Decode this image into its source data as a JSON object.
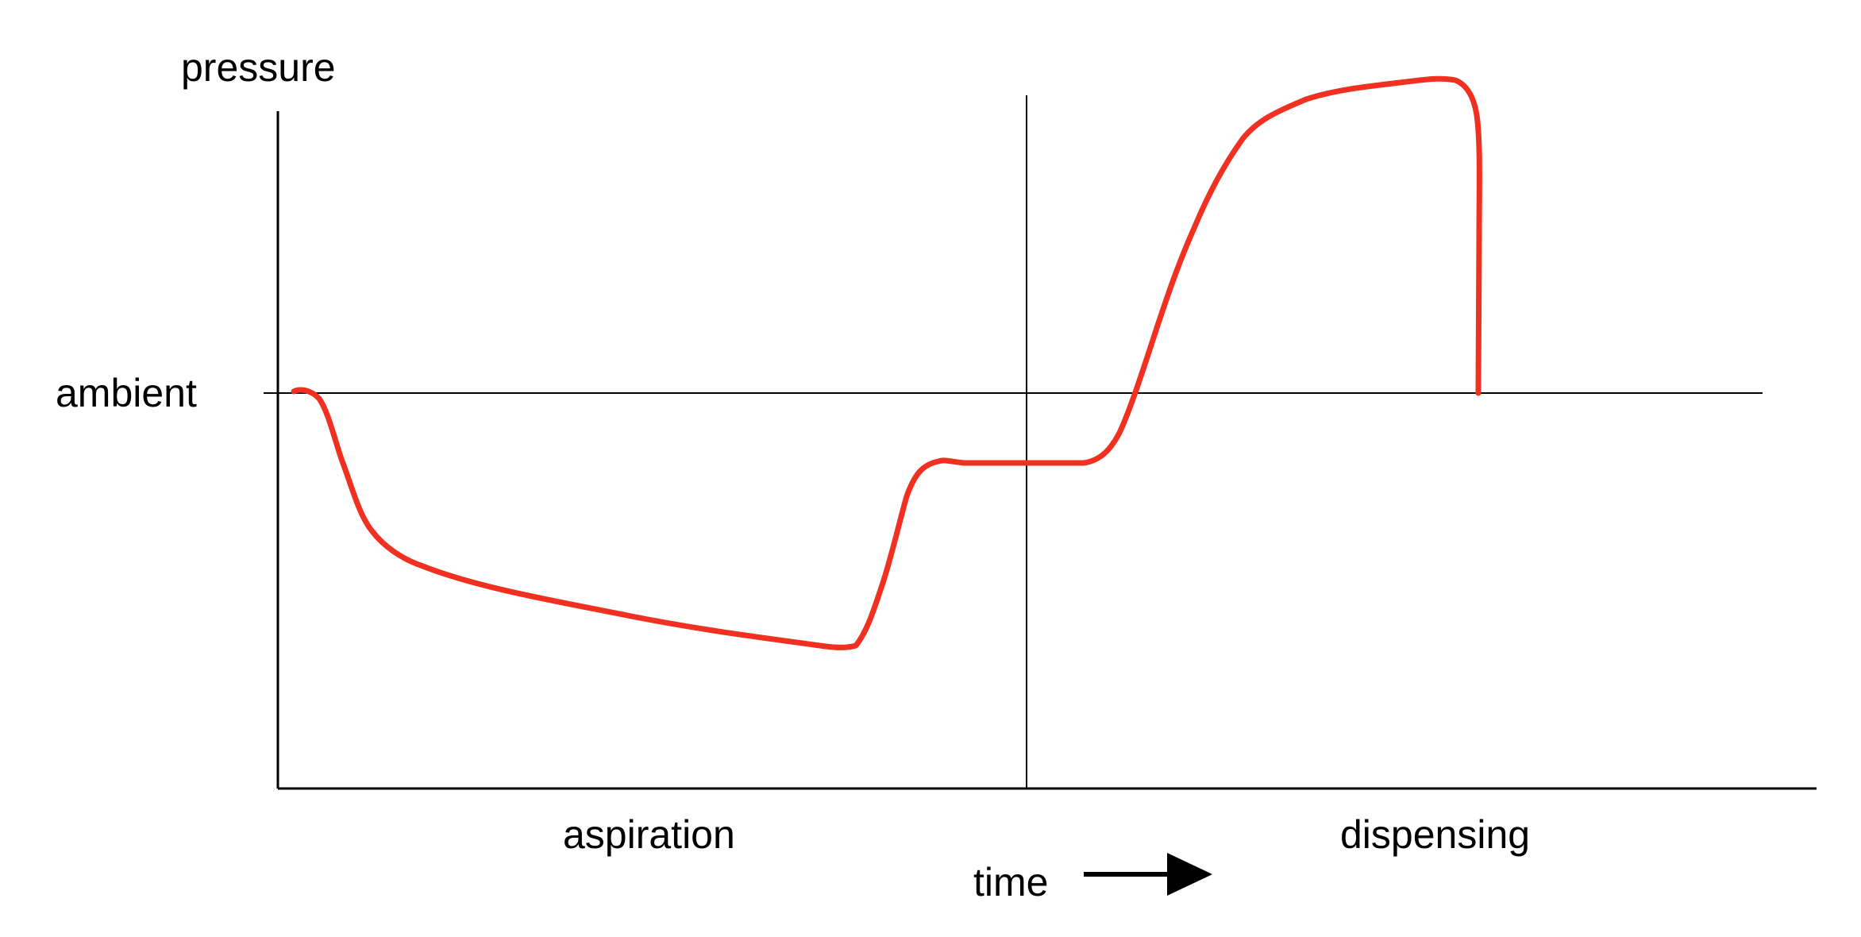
{
  "labels": {
    "y_axis": "pressure",
    "reference": "ambient",
    "phase_left": "aspiration",
    "phase_right": "dispensing",
    "x_axis": "time"
  },
  "colors": {
    "curve": "#f03020",
    "axes": "#000000",
    "background": "#ffffff"
  },
  "icons": {
    "time_arrow": "arrow-right-icon"
  }
}
